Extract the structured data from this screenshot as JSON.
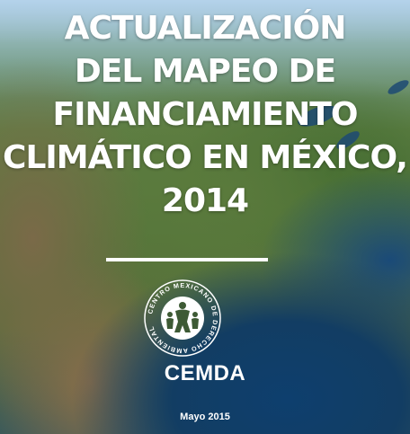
{
  "cover": {
    "title_lines": [
      "ACTUALIZACIÓN",
      "DEL MAPEO DE",
      "FINANCIAMIENTO",
      "CLIMÁTICO EN MÉXICO,",
      "2014"
    ],
    "organization_seal_text": "CENTRO MEXICANO DE DERECHO AMBIENTAL",
    "organization_acronym": "CEMDA",
    "date": "Mayo 2015"
  },
  "colors": {
    "text": "#ffffff",
    "ocean": "#123d63",
    "land": "#55743a"
  }
}
